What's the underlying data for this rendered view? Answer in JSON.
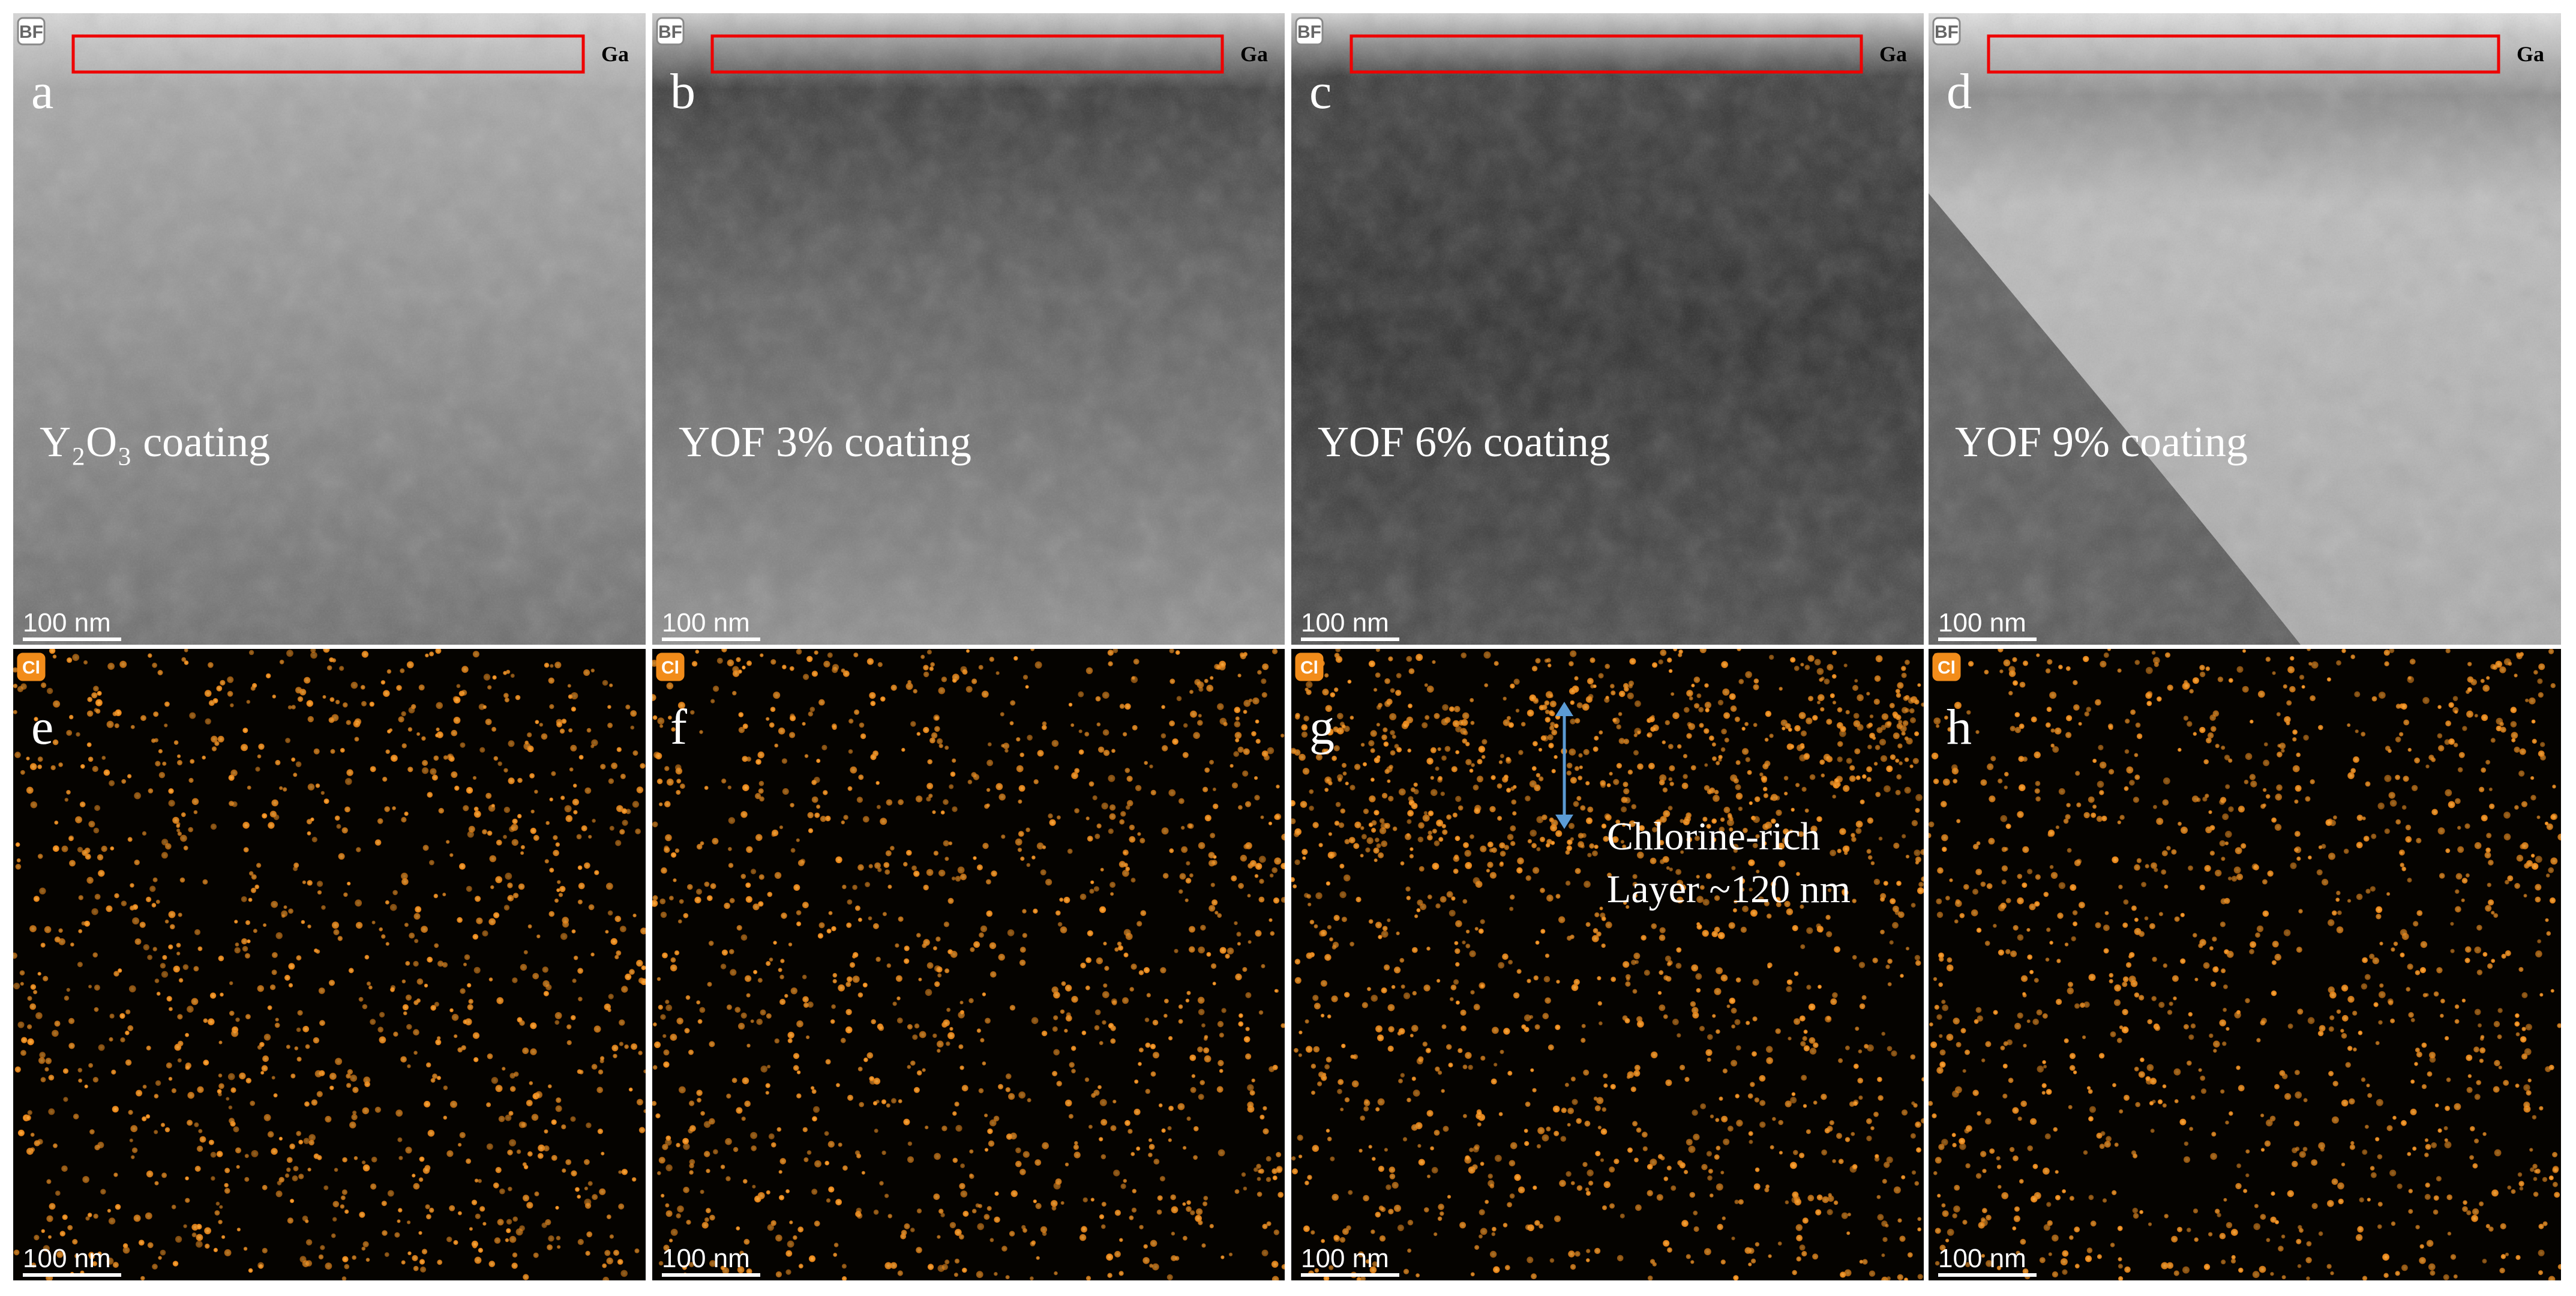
{
  "top_row": [
    {
      "badge": "BF",
      "letter": "a",
      "marker": "Ga",
      "label": "Y₂O₃ coating",
      "scale_bar": "100 nm"
    },
    {
      "badge": "BF",
      "letter": "b",
      "marker": "Ga",
      "label": "YOF 3% coating",
      "scale_bar": "100 nm"
    },
    {
      "badge": "BF",
      "letter": "c",
      "marker": "Ga",
      "label": "YOF 6% coating",
      "scale_bar": "100 nm"
    },
    {
      "badge": "BF",
      "letter": "d",
      "marker": "Ga",
      "label": "YOF 9% coating",
      "scale_bar": "100 nm"
    }
  ],
  "bottom_row": [
    {
      "badge": "Cl",
      "letter": "e",
      "scale_bar": "100 nm"
    },
    {
      "badge": "Cl",
      "letter": "f",
      "scale_bar": "100 nm"
    },
    {
      "badge": "Cl",
      "letter": "g",
      "scale_bar": "100 nm",
      "annotation": [
        "Chlorine-rich",
        "Layer ~120 nm"
      ]
    },
    {
      "badge": "Cl",
      "letter": "h",
      "scale_bar": "100 nm"
    }
  ]
}
